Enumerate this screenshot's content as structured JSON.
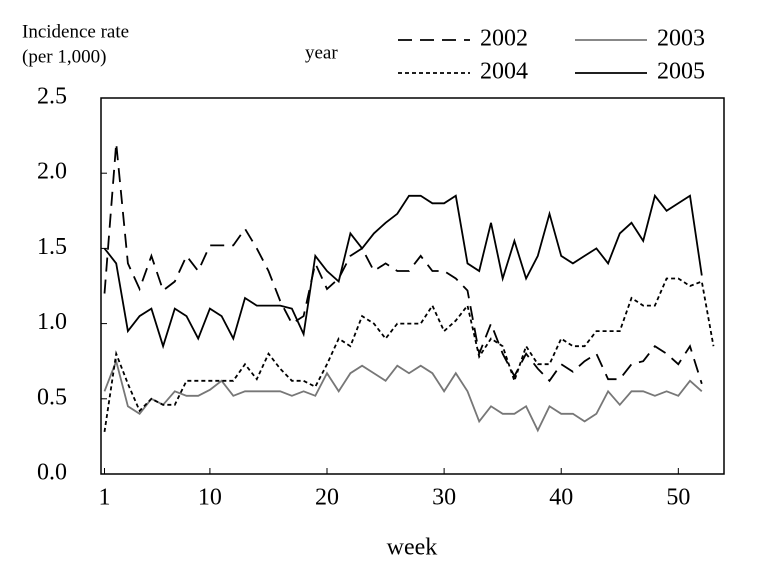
{
  "chart_data": {
    "type": "line",
    "y_label": [
      "Incidence rate",
      "(per 1,000)"
    ],
    "x_label": "week",
    "legend_title": "year",
    "x": [
      1,
      2,
      3,
      4,
      5,
      6,
      7,
      8,
      9,
      10,
      11,
      12,
      13,
      14,
      15,
      16,
      17,
      18,
      19,
      20,
      21,
      22,
      23,
      24,
      25,
      26,
      27,
      28,
      29,
      30,
      31,
      32,
      33,
      34,
      35,
      36,
      37,
      38,
      39,
      40,
      41,
      42,
      43,
      44,
      45,
      46,
      47,
      48,
      49,
      50,
      51,
      52,
      53
    ],
    "xlim": [
      0.7,
      53.9
    ],
    "xticks": [
      1,
      10,
      20,
      30,
      40,
      50
    ],
    "ylim": [
      0,
      2.5
    ],
    "yticks": [
      {
        "value": 0,
        "label": "0.0"
      },
      0.5,
      {
        "value": 1,
        "label": "1.0"
      },
      1.5,
      {
        "value": 2,
        "label": "2.0"
      },
      2.5
    ],
    "series": [
      {
        "name": "2002",
        "color": "#000000",
        "dash": "14,8",
        "values": [
          1.2,
          2.2,
          1.4,
          1.23,
          1.45,
          1.22,
          1.28,
          1.45,
          1.35,
          1.52,
          1.52,
          1.52,
          1.63,
          1.5,
          1.35,
          1.15,
          1.0,
          1.05,
          1.4,
          1.23,
          1.3,
          1.45,
          1.5,
          1.35,
          1.4,
          1.35,
          1.35,
          1.45,
          1.35,
          1.35,
          1.3,
          1.22,
          0.8,
          1.0,
          0.8,
          0.65,
          0.8,
          0.7,
          0.62,
          0.73,
          0.68,
          0.75,
          0.8,
          0.63,
          0.63,
          0.73,
          0.75,
          0.85,
          0.8,
          0.73,
          0.85,
          0.6,
          null
        ]
      },
      {
        "name": "2003",
        "color": "#777777",
        "dash": "none",
        "values": [
          0.55,
          0.75,
          0.45,
          0.4,
          0.5,
          0.46,
          0.55,
          0.52,
          0.52,
          0.56,
          0.62,
          0.52,
          0.55,
          0.55,
          0.55,
          0.55,
          0.52,
          0.55,
          0.52,
          0.67,
          0.55,
          0.67,
          0.72,
          0.67,
          0.62,
          0.72,
          0.67,
          0.72,
          0.67,
          0.55,
          0.67,
          0.55,
          0.35,
          0.45,
          0.4,
          0.4,
          0.45,
          0.29,
          0.45,
          0.4,
          0.4,
          0.35,
          0.4,
          0.55,
          0.46,
          0.55,
          0.55,
          0.52,
          0.55,
          0.52,
          0.62,
          0.55,
          null
        ]
      },
      {
        "name": "2004",
        "color": "#000000",
        "dash": "4,3",
        "values": [
          0.28,
          0.8,
          0.6,
          0.42,
          0.5,
          0.46,
          0.46,
          0.62,
          0.62,
          0.62,
          0.62,
          0.62,
          0.73,
          0.63,
          0.8,
          0.7,
          0.62,
          0.62,
          0.58,
          0.73,
          0.9,
          0.85,
          1.05,
          1.0,
          0.9,
          1.0,
          1.0,
          1.0,
          1.12,
          0.95,
          1.02,
          1.12,
          0.78,
          0.9,
          0.85,
          0.62,
          0.85,
          0.73,
          0.73,
          0.9,
          0.85,
          0.85,
          0.95,
          0.95,
          0.95,
          1.17,
          1.12,
          1.12,
          1.3,
          1.3,
          1.25,
          1.28,
          0.85
        ]
      },
      {
        "name": "2005",
        "color": "#000000",
        "dash": "none",
        "values": [
          1.5,
          1.4,
          0.95,
          1.05,
          1.1,
          0.85,
          1.1,
          1.05,
          0.9,
          1.1,
          1.05,
          0.9,
          1.17,
          1.12,
          1.12,
          1.12,
          1.1,
          0.93,
          1.45,
          1.35,
          1.28,
          1.6,
          1.5,
          1.6,
          1.67,
          1.73,
          1.85,
          1.85,
          1.8,
          1.8,
          1.85,
          1.4,
          1.35,
          1.67,
          1.3,
          1.55,
          1.3,
          1.45,
          1.73,
          1.45,
          1.4,
          1.45,
          1.5,
          1.4,
          1.6,
          1.67,
          1.55,
          1.85,
          1.75,
          1.8,
          1.85,
          1.32,
          null
        ]
      }
    ]
  }
}
